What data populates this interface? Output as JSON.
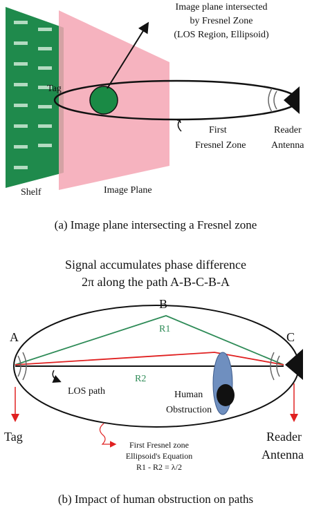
{
  "panel_a": {
    "callout": [
      "Image plane intersected",
      "by Fresnel Zone",
      "(LOS Region, Ellipsoid)"
    ],
    "tag": "Tag",
    "fresnel": [
      "First",
      "Fresnel Zone"
    ],
    "reader": [
      "Reader",
      "Antenna"
    ],
    "shelf": "Shelf",
    "image_plane": "Image Plane",
    "caption": "(a) Image plane intersecting a Fresnel zone"
  },
  "panel_b": {
    "title": [
      "Signal accumulates phase difference",
      "2π along the path A-B-C-B-A"
    ],
    "point_b": "B",
    "point_a": "A",
    "point_c": "C",
    "r1": "R1",
    "r2": "R2",
    "los": "LOS path",
    "human": [
      "Human",
      "Obstruction"
    ],
    "tag": "Tag",
    "reader": [
      "Reader",
      "Antenna"
    ],
    "fresnel": [
      "First Fresnel zone",
      "Ellipsoid's Equation",
      "R1 - R2 = λ/2"
    ],
    "caption": "(b) Impact of human obstruction on paths"
  }
}
